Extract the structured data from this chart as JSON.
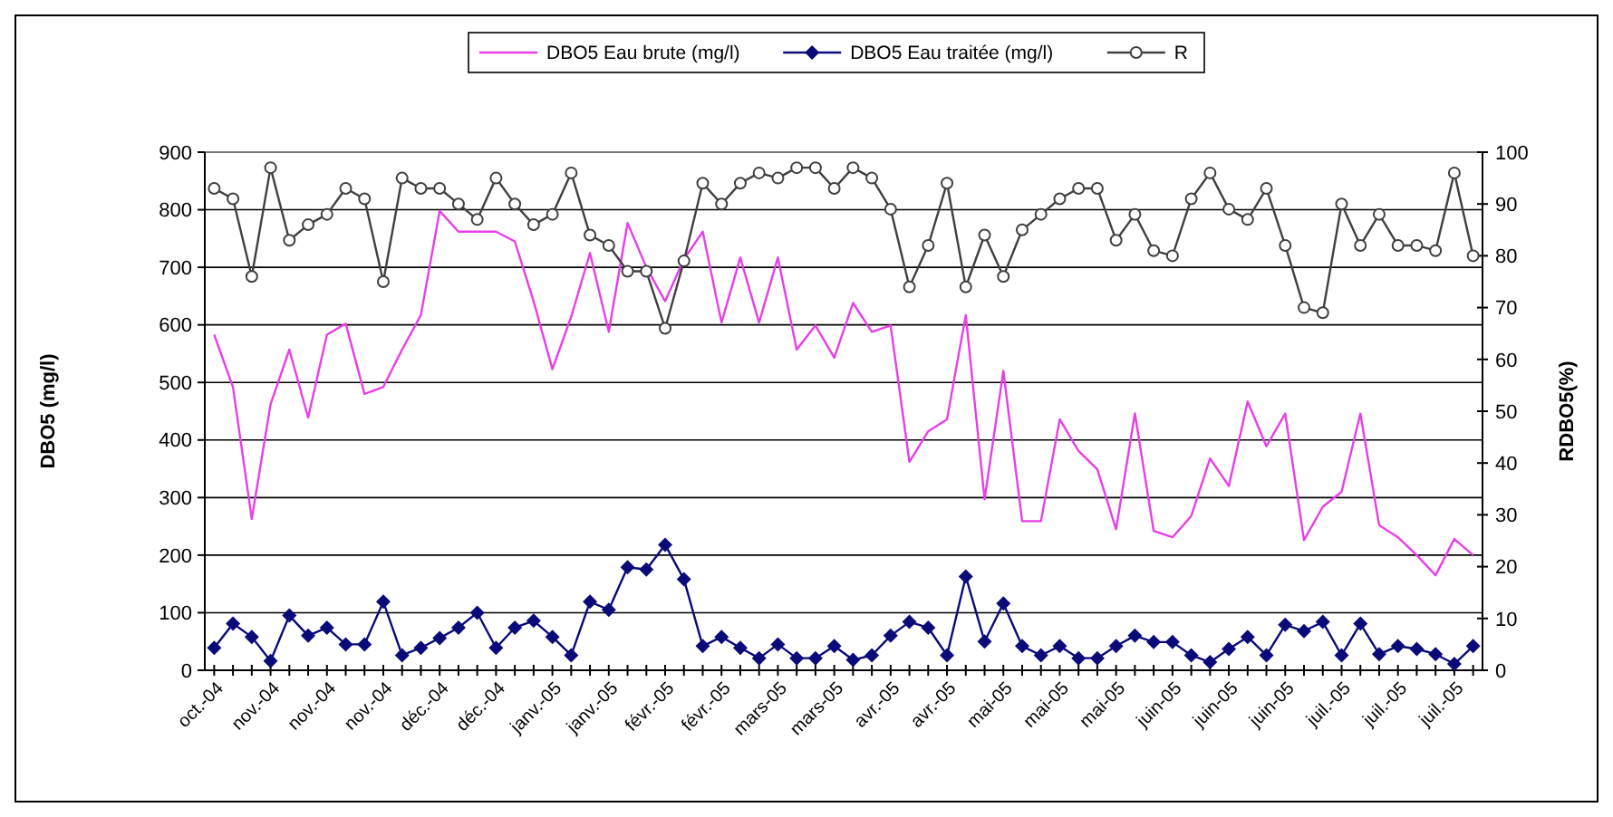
{
  "chart_data": {
    "type": "line",
    "categories": [
      "oct.-04",
      null,
      null,
      "nov.-04",
      null,
      null,
      "nov.-04",
      null,
      null,
      "nov.-04",
      null,
      null,
      "déc.-04",
      null,
      null,
      "déc.-04",
      null,
      null,
      "janv.-05",
      null,
      null,
      "janv.-05",
      null,
      null,
      "févr.-05",
      null,
      null,
      "févr.-05",
      null,
      null,
      "mars-05",
      null,
      null,
      "mars-05",
      null,
      null,
      "avr.-05",
      null,
      null,
      "avr.-05",
      null,
      null,
      "mai-05",
      null,
      null,
      "mai-05",
      null,
      null,
      "mai-05",
      null,
      null,
      "juin-05",
      null,
      null,
      "juin-05",
      null,
      null,
      "juin-05",
      null,
      null,
      "juil.-05",
      null,
      null,
      "juil.-05",
      null,
      null,
      "juil.-05",
      null
    ],
    "series": [
      {
        "name": "DBO5 Eau brute (mg/l)",
        "color": "#e83ee8",
        "marker": "none",
        "values": [
          583,
          492,
          263,
          462,
          557,
          439,
          583,
          602,
          480,
          492,
          557,
          617,
          798,
          762,
          762,
          762,
          745,
          641,
          523,
          614,
          725,
          588,
          777,
          700,
          641,
          714,
          762,
          604,
          717,
          604,
          717,
          557,
          599,
          543,
          638,
          588,
          599,
          362,
          415,
          436,
          617,
          297,
          520,
          259,
          259,
          436,
          381,
          349,
          245,
          446,
          242,
          231,
          268,
          368,
          320,
          467,
          389,
          446,
          226,
          284,
          310,
          446,
          252,
          231,
          200,
          165,
          228,
          200
        ]
      },
      {
        "name": "DBO5 Eau traitée (mg/l)",
        "color": "#0a0a78",
        "marker": "diamond",
        "values": [
          39,
          81,
          58,
          16,
          95,
          60,
          74,
          45,
          45,
          119,
          26,
          39,
          56,
          74,
          100,
          39,
          74,
          86,
          58,
          26,
          119,
          105,
          179,
          175,
          218,
          158,
          42,
          58,
          39,
          21,
          45,
          21,
          21,
          42,
          18,
          26,
          60,
          84,
          74,
          26,
          163,
          50,
          116,
          42,
          26,
          42,
          21,
          21,
          42,
          60,
          49,
          49,
          26,
          14,
          37,
          58,
          26,
          79,
          68,
          84,
          26,
          81,
          28,
          42,
          37,
          28,
          11,
          42
        ]
      },
      {
        "name": "R",
        "color": "#404040",
        "marker": "circle",
        "axis": "y2",
        "values": [
          93,
          91,
          76,
          97,
          83,
          86,
          88,
          93,
          91,
          75,
          95,
          93,
          93,
          90,
          87,
          95,
          90,
          86,
          88,
          96,
          84,
          82,
          77,
          77,
          66,
          79,
          94,
          90,
          94,
          96,
          95,
          97,
          97,
          93,
          97,
          95,
          89,
          74,
          82,
          94,
          74,
          84,
          76,
          85,
          88,
          91,
          93,
          93,
          83,
          88,
          81,
          80,
          91,
          96,
          89,
          87,
          93,
          82,
          70,
          69,
          90,
          82,
          88,
          82,
          82,
          81,
          96,
          80
        ]
      }
    ],
    "ylabel": "DBO5 (mg/l)",
    "y2label": "RDBO5(%)",
    "ylim": [
      0,
      900
    ],
    "yticks": [
      0,
      100,
      200,
      300,
      400,
      500,
      600,
      700,
      800,
      900
    ],
    "y2lim": [
      0,
      100
    ],
    "y2ticks": [
      0,
      10,
      20,
      30,
      40,
      50,
      60,
      70,
      80,
      90,
      100
    ],
    "grid": "y",
    "legend": "top",
    "line_style": "solid"
  }
}
